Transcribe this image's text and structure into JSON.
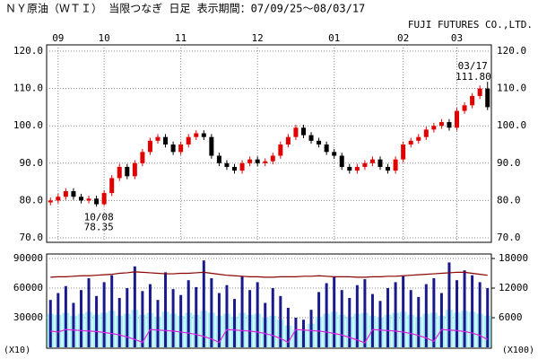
{
  "chart_data": [
    {
      "type": "candlestick",
      "title": "ＮＹ原油（ＷＴＩ） 当限つなぎ 日足 表示期間：07/09/25～08/03/17",
      "subtitle": "FUJI FUTURES CO.,LTD.",
      "categories": [
        null,
        "09",
        null,
        null,
        null,
        null,
        null,
        "10",
        null,
        null,
        null,
        null,
        null,
        null,
        null,
        null,
        null,
        "11",
        null,
        null,
        null,
        null,
        null,
        null,
        null,
        null,
        null,
        "12",
        null,
        null,
        null,
        null,
        null,
        null,
        null,
        null,
        null,
        "01",
        null,
        null,
        null,
        null,
        null,
        null,
        null,
        null,
        "02",
        null,
        null,
        null,
        null,
        null,
        null,
        "03",
        null,
        null,
        null,
        null
      ],
      "open": [
        79.5,
        80,
        81,
        82.5,
        81,
        80,
        80.5,
        79,
        82,
        86,
        89,
        86.5,
        90,
        93,
        96,
        97,
        95,
        93,
        95,
        97,
        98,
        97,
        92,
        90,
        89,
        88,
        90,
        91,
        90,
        90.5,
        92,
        95,
        97,
        99.5,
        97.5,
        96,
        95,
        93,
        92,
        89,
        88,
        89,
        90,
        91,
        89,
        88,
        91,
        95,
        96,
        97,
        99,
        100,
        101,
        99.5,
        104,
        105.5,
        108,
        110
      ],
      "high": [
        80.8,
        81.8,
        83.3,
        83.3,
        81.8,
        81.3,
        81.3,
        82.8,
        86.8,
        89.8,
        89.8,
        90.8,
        93.8,
        96.8,
        97.8,
        97.8,
        95.8,
        95.8,
        97.8,
        98.8,
        98.8,
        97.8,
        92.8,
        90.8,
        89.8,
        90.8,
        91.8,
        91.8,
        91.3,
        92.8,
        95.8,
        97.8,
        100.3,
        100.3,
        98.3,
        96.8,
        95.8,
        93.8,
        92.8,
        89.8,
        89.8,
        90.8,
        91.8,
        91.8,
        89.8,
        91.8,
        95.8,
        96.8,
        97.8,
        99.8,
        100.8,
        101.8,
        101.8,
        104.8,
        106.3,
        108.8,
        110.8,
        111.8
      ],
      "low": [
        78.7,
        79.2,
        80.2,
        80.2,
        79.2,
        79.2,
        78.35,
        78.6,
        81.2,
        85.2,
        85.7,
        85.7,
        89.2,
        92.2,
        95.2,
        94.2,
        92.2,
        92.2,
        94.2,
        96.2,
        96.2,
        91.2,
        89.2,
        88.2,
        87.2,
        87.2,
        89.2,
        89.2,
        89.2,
        89.7,
        91.2,
        94.2,
        96.2,
        96.7,
        95.2,
        94.2,
        92.2,
        91.2,
        88.2,
        87.2,
        87.2,
        88.2,
        89.2,
        88.2,
        87.2,
        87.2,
        90.2,
        94.2,
        95.2,
        96.2,
        98.2,
        99.2,
        98.7,
        98.7,
        103.2,
        104.7,
        107.2,
        104.2
      ],
      "close": [
        80,
        81,
        82.5,
        81,
        80,
        80.5,
        79,
        82,
        86,
        89,
        86.5,
        90,
        93,
        96,
        97,
        95,
        93,
        95,
        97,
        98,
        97,
        92,
        90,
        89,
        88,
        90,
        91,
        90,
        90.5,
        92,
        95,
        97,
        99.5,
        97.5,
        96,
        95,
        93,
        92,
        89,
        88,
        89,
        90,
        91,
        89,
        88,
        91,
        95,
        96,
        97,
        99,
        100,
        101,
        99.5,
        104,
        105.5,
        108,
        110,
        105
      ],
      "up_color": "#e00000",
      "down_color": "#000000",
      "ylim": [
        70,
        120
      ],
      "yticks": [
        {
          "value": 70,
          "label": "70.0"
        },
        {
          "value": 80,
          "label": "80.0"
        },
        {
          "value": 90,
          "label": "90.0"
        },
        {
          "value": 100,
          "label": "100.0"
        },
        {
          "value": 110,
          "label": "110.0"
        },
        {
          "value": 120,
          "label": "120.0"
        }
      ],
      "grid": true,
      "annotations": [
        {
          "index": 6,
          "date": "10/08",
          "label": "78.35"
        },
        {
          "index": 57,
          "date": "03/17",
          "label": "111.80"
        }
      ]
    },
    {
      "type": "bar",
      "ylabel": "(X10)",
      "y2label": "(X100)",
      "ylim": [
        0,
        90000
      ],
      "yticks": [
        30000,
        60000,
        90000
      ],
      "y2lim": [
        0,
        18000
      ],
      "y2ticks": [
        6000,
        12000,
        18000
      ],
      "grid": true,
      "series": [
        {
          "type": "bar",
          "color": "#a8f0f4",
          "values": [
            34000,
            33000,
            35000,
            32000,
            34000,
            36000,
            33000,
            35000,
            37000,
            32000,
            34000,
            38000,
            33000,
            35000,
            31000,
            36000,
            34000,
            32000,
            35000,
            33000,
            37000,
            35000,
            32000,
            34000,
            31000,
            35000,
            33000,
            34000,
            30000,
            32000,
            28000,
            22000,
            18000,
            17000,
            24000,
            31000,
            34000,
            36000,
            33000,
            31000,
            34000,
            35000,
            32000,
            30000,
            33000,
            35000,
            36000,
            33000,
            31000,
            34000,
            35000,
            32000,
            38000,
            35000,
            37000,
            36000,
            34000,
            32000
          ]
        },
        {
          "type": "bar",
          "color": "#1a1a8c",
          "values": [
            48000,
            55000,
            62000,
            45000,
            58000,
            70000,
            52000,
            66000,
            73000,
            50000,
            60000,
            82000,
            57000,
            64000,
            48000,
            76000,
            59000,
            53000,
            68000,
            61000,
            88000,
            70000,
            55000,
            63000,
            49000,
            72000,
            58000,
            66000,
            45000,
            60000,
            52000,
            40000,
            30000,
            28000,
            38000,
            56000,
            65000,
            71000,
            58000,
            50000,
            63000,
            69000,
            54000,
            47000,
            60000,
            66000,
            72000,
            58000,
            51000,
            64000,
            70000,
            55000,
            86000,
            68000,
            78000,
            73000,
            66000,
            60000
          ]
        },
        {
          "type": "line",
          "axis": "y2",
          "color": "#8b0000",
          "values": [
            14200,
            14300,
            14300,
            14400,
            14500,
            14500,
            14600,
            14700,
            14800,
            15000,
            15100,
            15300,
            15200,
            15100,
            15000,
            14900,
            14900,
            15000,
            15000,
            15100,
            15200,
            15000,
            14800,
            14600,
            14500,
            14400,
            14300,
            14300,
            14200,
            14200,
            14300,
            14300,
            14300,
            14400,
            14400,
            14500,
            14400,
            14300,
            14300,
            14300,
            14200,
            14200,
            14300,
            14300,
            14400,
            14400,
            14500,
            14600,
            14700,
            14800,
            14900,
            15000,
            15100,
            15200,
            15200,
            15000,
            14800,
            14600
          ]
        },
        {
          "type": "line",
          "axis": "y2",
          "color": "#e020e0",
          "values": [
            3300,
            3100,
            3600,
            3500,
            3400,
            3300,
            3200,
            3000,
            2800,
            2500,
            2100,
            1600,
            1000,
            3600,
            3500,
            3400,
            3300,
            3100,
            2900,
            2600,
            2200,
            1700,
            1000,
            3600,
            3500,
            3400,
            3300,
            3100,
            2800,
            2400,
            1800,
            1000,
            3600,
            3500,
            3400,
            3300,
            3100,
            2800,
            2500,
            2000,
            1500,
            900,
            3600,
            3500,
            3400,
            3300,
            3100,
            2800,
            2400,
            1900,
            1200,
            3600,
            3500,
            3400,
            3200,
            2900,
            2400,
            1600
          ]
        }
      ]
    }
  ]
}
